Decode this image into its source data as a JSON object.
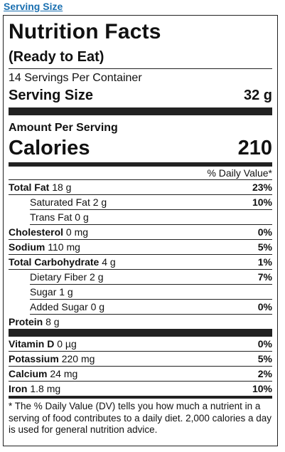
{
  "header_link": "Serving Size",
  "label": {
    "title": "Nutrition Facts",
    "subtitle": "(Ready to Eat)",
    "servings_per_container": "14 Servings Per Container",
    "serving_size_label": "Serving Size",
    "serving_size_value": "32 g",
    "amount_per_serving": "Amount Per Serving",
    "calories_label": "Calories",
    "calories_value": "210",
    "dv_header": "% Daily Value*",
    "nutrients": [
      {
        "name": "Total Fat",
        "amount": "18 g",
        "dv": "23%"
      },
      {
        "name": "Saturated Fat",
        "amount": "2 g",
        "dv": "10%"
      },
      {
        "name": "Trans Fat",
        "amount": "0 g",
        "dv": ""
      },
      {
        "name": "Cholesterol",
        "amount": "0 mg",
        "dv": "0%"
      },
      {
        "name": "Sodium",
        "amount": "110 mg",
        "dv": "5%"
      },
      {
        "name": "Total Carbohydrate",
        "amount": "4 g",
        "dv": "1%"
      },
      {
        "name": "Dietary Fiber",
        "amount": "2 g",
        "dv": "7%"
      },
      {
        "name": "Sugar",
        "amount": "1 g",
        "dv": ""
      },
      {
        "name": "Added Sugar",
        "amount": "0 g",
        "dv": "0%"
      },
      {
        "name": "Protein",
        "amount": "8 g",
        "dv": ""
      }
    ],
    "vitamins": [
      {
        "name": "Vitamin D",
        "amount": "0 µg",
        "dv": "0%"
      },
      {
        "name": "Potassium",
        "amount": "220 mg",
        "dv": "5%"
      },
      {
        "name": "Calcium",
        "amount": "24 mg",
        "dv": "2%"
      },
      {
        "name": "Iron",
        "amount": "1.8 mg",
        "dv": "10%"
      }
    ],
    "footnote": "* The % Daily Value (DV) tells you how much a nutrient in a serving of food contributes to a daily diet. 2,000 calories a day is used for general nutrition advice."
  }
}
